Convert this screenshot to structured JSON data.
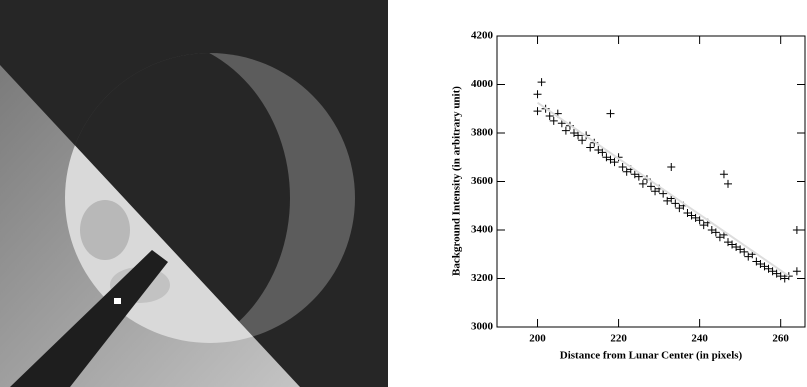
{
  "chart_data": {
    "type": "scatter",
    "xlabel": "Distance from Lunar Center (in pixels)",
    "ylabel": "Background Intensity (in arbitrary unit)",
    "xlim": [
      190,
      266
    ],
    "ylim": [
      3000,
      4200
    ],
    "xticks": [
      200,
      220,
      240,
      260
    ],
    "yticks": [
      3000,
      3200,
      3400,
      3600,
      3800,
      4000,
      4200
    ],
    "marker": "plus",
    "series": [
      {
        "color": "#000000",
        "x": [
          200,
          200,
          201,
          202,
          203,
          204,
          205,
          206,
          207,
          208,
          209,
          210,
          211,
          212,
          213,
          214,
          215,
          216,
          217,
          218,
          218,
          219,
          220,
          221,
          222,
          223,
          224,
          225,
          226,
          227,
          228,
          229,
          230,
          231,
          232,
          233,
          233,
          234,
          235,
          236,
          237,
          238,
          239,
          240,
          241,
          242,
          243,
          244,
          245,
          246,
          246,
          247,
          247,
          248,
          249,
          250,
          251,
          252,
          253,
          254,
          255,
          256,
          257,
          258,
          259,
          260,
          261,
          262,
          264,
          264
        ],
        "values": [
          3960,
          3890,
          4010,
          3900,
          3870,
          3850,
          3880,
          3840,
          3810,
          3830,
          3800,
          3790,
          3770,
          3790,
          3740,
          3760,
          3730,
          3720,
          3700,
          3880,
          3690,
          3680,
          3700,
          3660,
          3640,
          3650,
          3630,
          3620,
          3590,
          3610,
          3580,
          3560,
          3570,
          3550,
          3520,
          3660,
          3530,
          3510,
          3490,
          3500,
          3470,
          3460,
          3450,
          3440,
          3420,
          3430,
          3400,
          3390,
          3370,
          3630,
          3380,
          3590,
          3350,
          3340,
          3330,
          3320,
          3310,
          3290,
          3300,
          3270,
          3260,
          3250,
          3240,
          3230,
          3220,
          3210,
          3200,
          3210,
          3400,
          3230
        ]
      },
      {
        "type": "line",
        "color": "#dddddd",
        "x": [
          200,
          262
        ],
        "values": [
          3925,
          3210
        ]
      }
    ]
  }
}
